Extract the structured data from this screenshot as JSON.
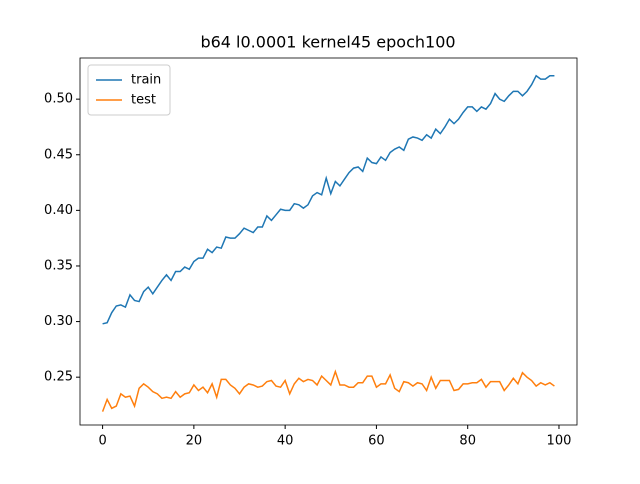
{
  "chart_data": {
    "type": "line",
    "title": "b64 l0.0001 kernel45 epoch100",
    "x": [
      0,
      1,
      2,
      3,
      4,
      5,
      6,
      7,
      8,
      9,
      10,
      11,
      12,
      13,
      14,
      15,
      16,
      17,
      18,
      19,
      20,
      21,
      22,
      23,
      24,
      25,
      26,
      27,
      28,
      29,
      30,
      31,
      32,
      33,
      34,
      35,
      36,
      37,
      38,
      39,
      40,
      41,
      42,
      43,
      44,
      45,
      46,
      47,
      48,
      49,
      50,
      51,
      52,
      53,
      54,
      55,
      56,
      57,
      58,
      59,
      60,
      61,
      62,
      63,
      64,
      65,
      66,
      67,
      68,
      69,
      70,
      71,
      72,
      73,
      74,
      75,
      76,
      77,
      78,
      79,
      80,
      81,
      82,
      83,
      84,
      85,
      86,
      87,
      88,
      89,
      90,
      91,
      92,
      93,
      94,
      95,
      96,
      97,
      98,
      99
    ],
    "series": [
      {
        "name": "train",
        "color": "#1f77b4",
        "values": [
          0.298,
          0.299,
          0.308,
          0.314,
          0.315,
          0.313,
          0.324,
          0.319,
          0.318,
          0.327,
          0.331,
          0.325,
          0.331,
          0.337,
          0.342,
          0.337,
          0.345,
          0.345,
          0.349,
          0.347,
          0.354,
          0.357,
          0.357,
          0.365,
          0.362,
          0.367,
          0.366,
          0.376,
          0.375,
          0.375,
          0.379,
          0.384,
          0.382,
          0.38,
          0.385,
          0.385,
          0.395,
          0.391,
          0.396,
          0.401,
          0.4,
          0.4,
          0.406,
          0.405,
          0.402,
          0.405,
          0.413,
          0.416,
          0.414,
          0.429,
          0.415,
          0.426,
          0.422,
          0.428,
          0.434,
          0.438,
          0.439,
          0.435,
          0.447,
          0.443,
          0.442,
          0.448,
          0.445,
          0.452,
          0.455,
          0.457,
          0.454,
          0.464,
          0.466,
          0.465,
          0.463,
          0.468,
          0.465,
          0.473,
          0.469,
          0.475,
          0.482,
          0.478,
          0.482,
          0.488,
          0.493,
          0.493,
          0.489,
          0.493,
          0.491,
          0.496,
          0.505,
          0.5,
          0.498,
          0.503,
          0.507,
          0.507,
          0.503,
          0.507,
          0.513,
          0.521,
          0.518,
          0.518,
          0.521,
          0.521
        ]
      },
      {
        "name": "test",
        "color": "#ff7f0e",
        "values": [
          0.219,
          0.23,
          0.222,
          0.224,
          0.235,
          0.232,
          0.233,
          0.224,
          0.24,
          0.244,
          0.241,
          0.237,
          0.235,
          0.231,
          0.232,
          0.231,
          0.237,
          0.232,
          0.235,
          0.236,
          0.243,
          0.238,
          0.241,
          0.236,
          0.244,
          0.232,
          0.248,
          0.248,
          0.243,
          0.24,
          0.235,
          0.241,
          0.244,
          0.243,
          0.241,
          0.242,
          0.246,
          0.247,
          0.242,
          0.241,
          0.247,
          0.235,
          0.244,
          0.249,
          0.246,
          0.248,
          0.247,
          0.243,
          0.251,
          0.247,
          0.243,
          0.255,
          0.243,
          0.243,
          0.241,
          0.241,
          0.245,
          0.245,
          0.251,
          0.251,
          0.241,
          0.244,
          0.244,
          0.252,
          0.24,
          0.237,
          0.246,
          0.245,
          0.242,
          0.245,
          0.244,
          0.238,
          0.25,
          0.24,
          0.247,
          0.247,
          0.247,
          0.238,
          0.239,
          0.244,
          0.244,
          0.245,
          0.245,
          0.248,
          0.241,
          0.246,
          0.246,
          0.246,
          0.238,
          0.243,
          0.249,
          0.244,
          0.254,
          0.25,
          0.247,
          0.242,
          0.245,
          0.243,
          0.245,
          0.242
        ]
      }
    ],
    "xlim": [
      -4.95,
      103.95
    ],
    "xticks": [
      0,
      20,
      40,
      60,
      80,
      100
    ],
    "ylim": [
      0.207,
      0.537
    ],
    "yticks": [
      {
        "value": 0.25,
        "label": "0.25"
      },
      {
        "value": 0.3,
        "label": "0.30"
      },
      {
        "value": 0.35,
        "label": "0.35"
      },
      {
        "value": 0.4,
        "label": "0.40"
      },
      {
        "value": 0.45,
        "label": "0.45"
      },
      {
        "value": 0.5,
        "label": "0.50"
      }
    ],
    "legend": "upper left"
  }
}
